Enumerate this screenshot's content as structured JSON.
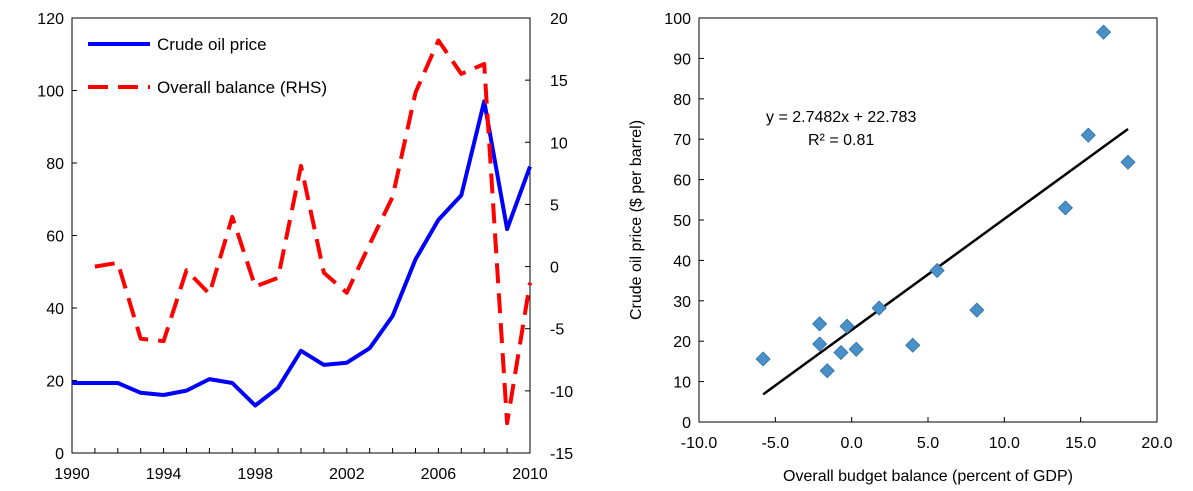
{
  "chart_data": [
    {
      "type": "line",
      "title": "",
      "xlabel": "",
      "ylabel": "",
      "y2label": "",
      "xlim": [
        1990,
        2010
      ],
      "x_ticks": [
        "1990",
        "1994",
        "1998",
        "2002",
        "2006",
        "2010"
      ],
      "ylim": [
        0,
        120
      ],
      "y_ticks": [
        "0",
        "20",
        "40",
        "60",
        "80",
        "100",
        "120"
      ],
      "y2lim": [
        -15,
        20
      ],
      "y2_ticks": [
        "-15",
        "-10",
        "-5",
        "0",
        "5",
        "10",
        "15",
        "20"
      ],
      "grid": false,
      "legend": "top-left",
      "series": [
        {
          "name": "Crude oil price",
          "axis": "left",
          "style": "solid",
          "color": "#0000ff",
          "x": [
            1990,
            1991,
            1992,
            1993,
            1994,
            1995,
            1996,
            1997,
            1998,
            1999,
            2000,
            2001,
            2002,
            2003,
            2004,
            2005,
            2006,
            2007,
            2008,
            2009,
            2010
          ],
          "values": [
            19.3,
            19.3,
            19.3,
            16.6,
            16.0,
            17.2,
            20.4,
            19.3,
            13.1,
            18.0,
            28.2,
            24.3,
            24.9,
            28.9,
            37.8,
            53.4,
            64.3,
            71.1,
            97.0,
            61.8,
            79.0
          ]
        },
        {
          "name": "Overall balance (RHS)",
          "axis": "right",
          "style": "dashed",
          "color": "#ff0000",
          "x": [
            1991,
            1992,
            1993,
            1994,
            1995,
            1996,
            1997,
            1998,
            1999,
            2000,
            2001,
            2002,
            2003,
            2004,
            2005,
            2006,
            2007,
            2008,
            2009,
            2010
          ],
          "values": [
            0.0,
            0.3,
            -5.8,
            -6.0,
            -0.3,
            -2.2,
            4.0,
            -1.6,
            -0.9,
            8.1,
            -0.5,
            -2.1,
            1.8,
            5.6,
            14.0,
            18.2,
            15.5,
            16.3,
            -12.6,
            -1.3
          ]
        }
      ]
    },
    {
      "type": "scatter",
      "title": "",
      "xlabel": "Overall budget balance (percent of GDP)",
      "ylabel": "Crude oil price ($ per barrel)",
      "xlim": [
        -10,
        20
      ],
      "x_ticks": [
        "-10.0",
        "-5.0",
        "0.0",
        "5.0",
        "10.0",
        "15.0",
        "20.0"
      ],
      "ylim": [
        0,
        100
      ],
      "y_ticks": [
        "0",
        "10",
        "20",
        "30",
        "40",
        "50",
        "60",
        "70",
        "80",
        "90",
        "100"
      ],
      "grid": false,
      "marker_color": "#4a90c8",
      "trendline_color": "#000000",
      "points": [
        {
          "x": -5.8,
          "y": 15.6
        },
        {
          "x": -2.1,
          "y": 24.3
        },
        {
          "x": -2.1,
          "y": 19.3
        },
        {
          "x": -1.6,
          "y": 12.7
        },
        {
          "x": -0.7,
          "y": 17.2
        },
        {
          "x": -0.3,
          "y": 23.7
        },
        {
          "x": 0.3,
          "y": 18.0
        },
        {
          "x": 1.8,
          "y": 28.2
        },
        {
          "x": 4.0,
          "y": 19.0
        },
        {
          "x": 5.6,
          "y": 37.5
        },
        {
          "x": 8.2,
          "y": 27.7
        },
        {
          "x": 14.0,
          "y": 53.0
        },
        {
          "x": 15.5,
          "y": 71.0
        },
        {
          "x": 16.5,
          "y": 96.5
        },
        {
          "x": 18.1,
          "y": 64.3
        }
      ],
      "trendline": {
        "slope": 2.7482,
        "intercept": 22.783,
        "x_range": [
          -5.8,
          18.1
        ],
        "equation_label": "y = 2.7482x + 22.783",
        "r2_label": "R² = 0.81"
      }
    }
  ]
}
